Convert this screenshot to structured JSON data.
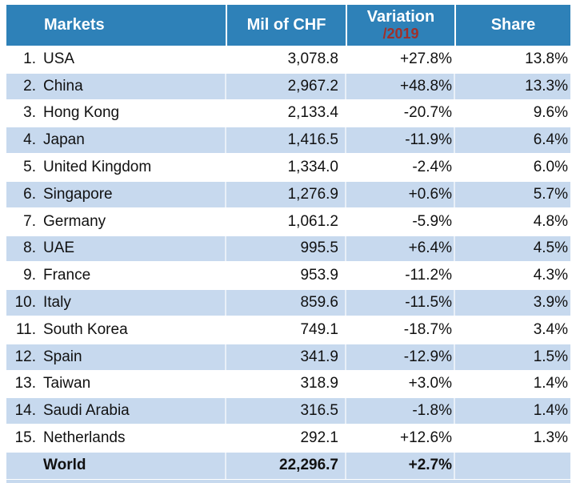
{
  "table": {
    "columns": [
      {
        "label": "Markets"
      },
      {
        "label": "Mil of CHF"
      },
      {
        "label": "Variation",
        "sublabel": "/2019"
      },
      {
        "label": "Share"
      }
    ],
    "rows": [
      {
        "rank": "1.",
        "market": "USA",
        "value": "3,078.8",
        "variation": "+27.8%",
        "share": "13.8%"
      },
      {
        "rank": "2.",
        "market": "China",
        "value": "2,967.2",
        "variation": "+48.8%",
        "share": "13.3%"
      },
      {
        "rank": "3.",
        "market": "Hong Kong",
        "value": "2,133.4",
        "variation": "-20.7%",
        "share": "9.6%"
      },
      {
        "rank": "4.",
        "market": "Japan",
        "value": "1,416.5",
        "variation": "-11.9%",
        "share": "6.4%"
      },
      {
        "rank": "5.",
        "market": "United Kingdom",
        "value": "1,334.0",
        "variation": "-2.4%",
        "share": "6.0%"
      },
      {
        "rank": "6.",
        "market": "Singapore",
        "value": "1,276.9",
        "variation": "+0.6%",
        "share": "5.7%"
      },
      {
        "rank": "7.",
        "market": "Germany",
        "value": "1,061.2",
        "variation": "-5.9%",
        "share": "4.8%"
      },
      {
        "rank": "8.",
        "market": "UAE",
        "value": "995.5",
        "variation": "+6.4%",
        "share": "4.5%"
      },
      {
        "rank": "9.",
        "market": "France",
        "value": "953.9",
        "variation": "-11.2%",
        "share": "4.3%"
      },
      {
        "rank": "10.",
        "market": "Italy",
        "value": "859.6",
        "variation": "-11.5%",
        "share": "3.9%"
      },
      {
        "rank": "11.",
        "market": "South Korea",
        "value": "749.1",
        "variation": "-18.7%",
        "share": "3.4%"
      },
      {
        "rank": "12.",
        "market": "Spain",
        "value": "341.9",
        "variation": "-12.9%",
        "share": "1.5%"
      },
      {
        "rank": "13.",
        "market": "Taiwan",
        "value": "318.9",
        "variation": "+3.0%",
        "share": "1.4%"
      },
      {
        "rank": "14.",
        "market": "Saudi Arabia",
        "value": "316.5",
        "variation": "-1.8%",
        "share": "1.4%"
      },
      {
        "rank": "15.",
        "market": "Netherlands",
        "value": "292.1",
        "variation": "+12.6%",
        "share": "1.3%"
      }
    ],
    "footer": {
      "rank": "",
      "market": "World",
      "value": "22,296.7",
      "variation": "+2.7%",
      "share": ""
    }
  },
  "colors": {
    "header_bg": "#2E81B8",
    "stripe_bg": "#C7D9EE",
    "variation_year_red": "#A0302A"
  },
  "chart_data": {
    "type": "table",
    "title": "",
    "columns": [
      "Markets",
      "Mil of CHF",
      "Variation /2019",
      "Share"
    ],
    "rows": [
      [
        "USA",
        3078.8,
        "+27.8%",
        "13.8%"
      ],
      [
        "China",
        2967.2,
        "+48.8%",
        "13.3%"
      ],
      [
        "Hong Kong",
        2133.4,
        "-20.7%",
        "9.6%"
      ],
      [
        "Japan",
        1416.5,
        "-11.9%",
        "6.4%"
      ],
      [
        "United Kingdom",
        1334.0,
        "-2.4%",
        "6.0%"
      ],
      [
        "Singapore",
        1276.9,
        "+0.6%",
        "5.7%"
      ],
      [
        "Germany",
        1061.2,
        "-5.9%",
        "4.8%"
      ],
      [
        "UAE",
        995.5,
        "+6.4%",
        "4.5%"
      ],
      [
        "France",
        953.9,
        "-11.2%",
        "4.3%"
      ],
      [
        "Italy",
        859.6,
        "-11.5%",
        "3.9%"
      ],
      [
        "South Korea",
        749.1,
        "-18.7%",
        "3.4%"
      ],
      [
        "Spain",
        341.9,
        "-12.9%",
        "1.5%"
      ],
      [
        "Taiwan",
        318.9,
        "+3.0%",
        "1.4%"
      ],
      [
        "Saudi Arabia",
        316.5,
        "-1.8%",
        "1.4%"
      ],
      [
        "Netherlands",
        292.1,
        "+12.6%",
        "1.3%"
      ]
    ],
    "summary_row": [
      "World",
      22296.7,
      "+2.7%",
      ""
    ]
  }
}
